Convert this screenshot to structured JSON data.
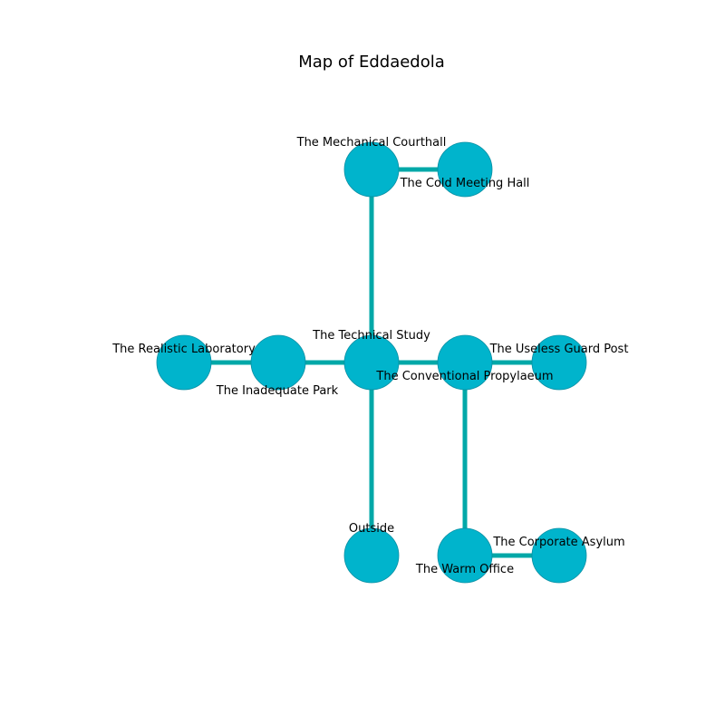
{
  "title": "Map of Eddaedola",
  "colors": {
    "node_fill": "#00b4cc",
    "node_stroke": "#0a8fa3",
    "edge": "#00a8a8"
  },
  "rooms": [
    {
      "id": "mechanical-courthall",
      "name": "The Mechanical Courthall"
    },
    {
      "id": "cold-meeting-hall",
      "name": "The Cold Meeting Hall"
    },
    {
      "id": "realistic-laboratory",
      "name": "The Realistic Laboratory"
    },
    {
      "id": "inadequate-park",
      "name": "The Inadequate Park"
    },
    {
      "id": "technical-study",
      "name": "The Technical Study"
    },
    {
      "id": "conventional-propylaeum",
      "name": "The Conventional Propylaeum"
    },
    {
      "id": "useless-guard-post",
      "name": "The Useless Guard Post"
    },
    {
      "id": "outside",
      "name": "Outside"
    },
    {
      "id": "warm-office",
      "name": "The Warm Office"
    },
    {
      "id": "corporate-asylum",
      "name": "The Corporate Asylum"
    }
  ],
  "connections": [
    [
      "mechanical-courthall",
      "cold-meeting-hall"
    ],
    [
      "mechanical-courthall",
      "technical-study"
    ],
    [
      "realistic-laboratory",
      "inadequate-park"
    ],
    [
      "inadequate-park",
      "technical-study"
    ],
    [
      "technical-study",
      "conventional-propylaeum"
    ],
    [
      "conventional-propylaeum",
      "useless-guard-post"
    ],
    [
      "technical-study",
      "outside"
    ],
    [
      "conventional-propylaeum",
      "warm-office"
    ],
    [
      "warm-office",
      "corporate-asylum"
    ]
  ]
}
